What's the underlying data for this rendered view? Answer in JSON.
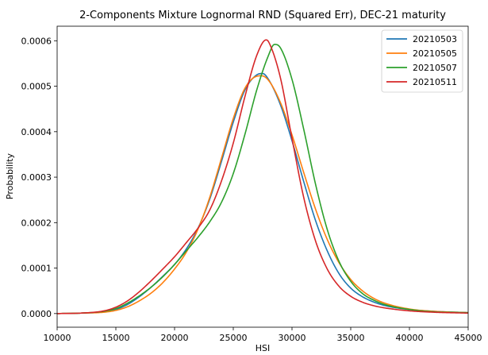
{
  "chart_data": {
    "type": "line",
    "title": "2-Components Mixture Lognormal RND (Squared Err), DEC-21 maturity",
    "xlabel": "HSI",
    "ylabel": "Probability",
    "xlim": [
      10000,
      45000
    ],
    "ylim": [
      -3e-05,
      0.000632
    ],
    "xticks": [
      10000,
      15000,
      20000,
      25000,
      30000,
      35000,
      40000,
      45000
    ],
    "xtick_labels": [
      "10000",
      "15000",
      "20000",
      "25000",
      "30000",
      "35000",
      "40000",
      "45000"
    ],
    "yticks": [
      0.0,
      0.0001,
      0.0002,
      0.0003,
      0.0004,
      0.0005,
      0.0006
    ],
    "ytick_labels": [
      "0.0000",
      "0.0001",
      "0.0002",
      "0.0003",
      "0.0004",
      "0.0005",
      "0.0006"
    ],
    "grid": false,
    "legend_position": "top-right",
    "series": [
      {
        "name": "20210503",
        "color": "#1f77b4",
        "x": [
          10000,
          12000,
          14000,
          15000,
          16000,
          17000,
          18000,
          19000,
          20000,
          21000,
          22000,
          23000,
          24000,
          25000,
          26000,
          27000,
          27500,
          28000,
          29000,
          30000,
          31000,
          32000,
          33000,
          34000,
          35000,
          36000,
          37000,
          38000,
          40000,
          42000,
          45000
        ],
        "y": [
          0.0,
          1e-06,
          4e-06,
          9e-06,
          2e-05,
          3.7e-05,
          5.8e-05,
          8.2e-05,
          0.000108,
          0.000142,
          0.000188,
          0.000252,
          0.000335,
          0.000421,
          0.000492,
          0.000525,
          0.000528,
          0.000515,
          0.00046,
          0.00038,
          0.00029,
          0.000205,
          0.000138,
          8.8e-05,
          5.6e-05,
          3.7e-05,
          2.5e-05,
          1.7e-05,
          9e-06,
          5e-06,
          2e-06
        ]
      },
      {
        "name": "20210505",
        "color": "#ff7f0e",
        "x": [
          10000,
          12000,
          14000,
          15000,
          16000,
          17000,
          18000,
          19000,
          20000,
          21000,
          22000,
          23000,
          24000,
          25000,
          26000,
          27000,
          27400,
          28000,
          29000,
          30000,
          31000,
          32000,
          33000,
          34000,
          35000,
          36000,
          37000,
          38000,
          40000,
          42000,
          45000
        ],
        "y": [
          0.0,
          1e-06,
          3e-06,
          7e-06,
          1.5e-05,
          2.8e-05,
          4.5e-05,
          6.8e-05,
          9.8e-05,
          0.000135,
          0.000186,
          0.000256,
          0.000342,
          0.000429,
          0.000496,
          0.000522,
          0.000523,
          0.000513,
          0.000465,
          0.000393,
          0.00031,
          0.00023,
          0.000163,
          0.000112,
          7.5e-05,
          5e-05,
          3.3e-05,
          2.2e-05,
          1e-05,
          5e-06,
          2e-06
        ]
      },
      {
        "name": "20210507",
        "color": "#2ca02c",
        "x": [
          10000,
          12000,
          14000,
          15000,
          16000,
          17000,
          18000,
          19000,
          20000,
          21000,
          22000,
          23000,
          24000,
          25000,
          26000,
          27000,
          28000,
          28500,
          29000,
          30000,
          31000,
          32000,
          33000,
          34000,
          35000,
          36000,
          37000,
          38000,
          40000,
          42000,
          45000
        ],
        "y": [
          0.0,
          1e-06,
          5e-06,
          1.1e-05,
          2.3e-05,
          3.9e-05,
          5.8e-05,
          8.1e-05,
          0.000108,
          0.000138,
          0.000168,
          0.000202,
          0.000245,
          0.000308,
          0.000395,
          0.000492,
          0.000568,
          0.000592,
          0.000585,
          0.000515,
          0.000405,
          0.000285,
          0.000185,
          0.000115,
          7.1e-05,
          4.4e-05,
          2.9e-05,
          1.9e-05,
          9e-06,
          4e-06,
          2e-06
        ]
      },
      {
        "name": "20210511",
        "color": "#d62728",
        "x": [
          10000,
          12000,
          14000,
          15000,
          16000,
          17000,
          18000,
          19000,
          20000,
          21000,
          22000,
          23000,
          24000,
          25000,
          26000,
          27000,
          27800,
          28000,
          29000,
          30000,
          31000,
          32000,
          33000,
          34000,
          35000,
          36000,
          37000,
          38000,
          40000,
          42000,
          45000
        ],
        "y": [
          0.0,
          1e-06,
          6e-06,
          1.4e-05,
          2.8e-05,
          4.8e-05,
          7.2e-05,
          9.8e-05,
          0.000125,
          0.000156,
          0.000188,
          0.000228,
          0.000292,
          0.000375,
          0.000478,
          0.000568,
          0.000602,
          0.000598,
          0.00052,
          0.000385,
          0.000255,
          0.00016,
          9.8e-05,
          6e-05,
          3.8e-05,
          2.5e-05,
          1.7e-05,
          1.2e-05,
          6e-06,
          3e-06,
          1e-06
        ]
      }
    ]
  }
}
